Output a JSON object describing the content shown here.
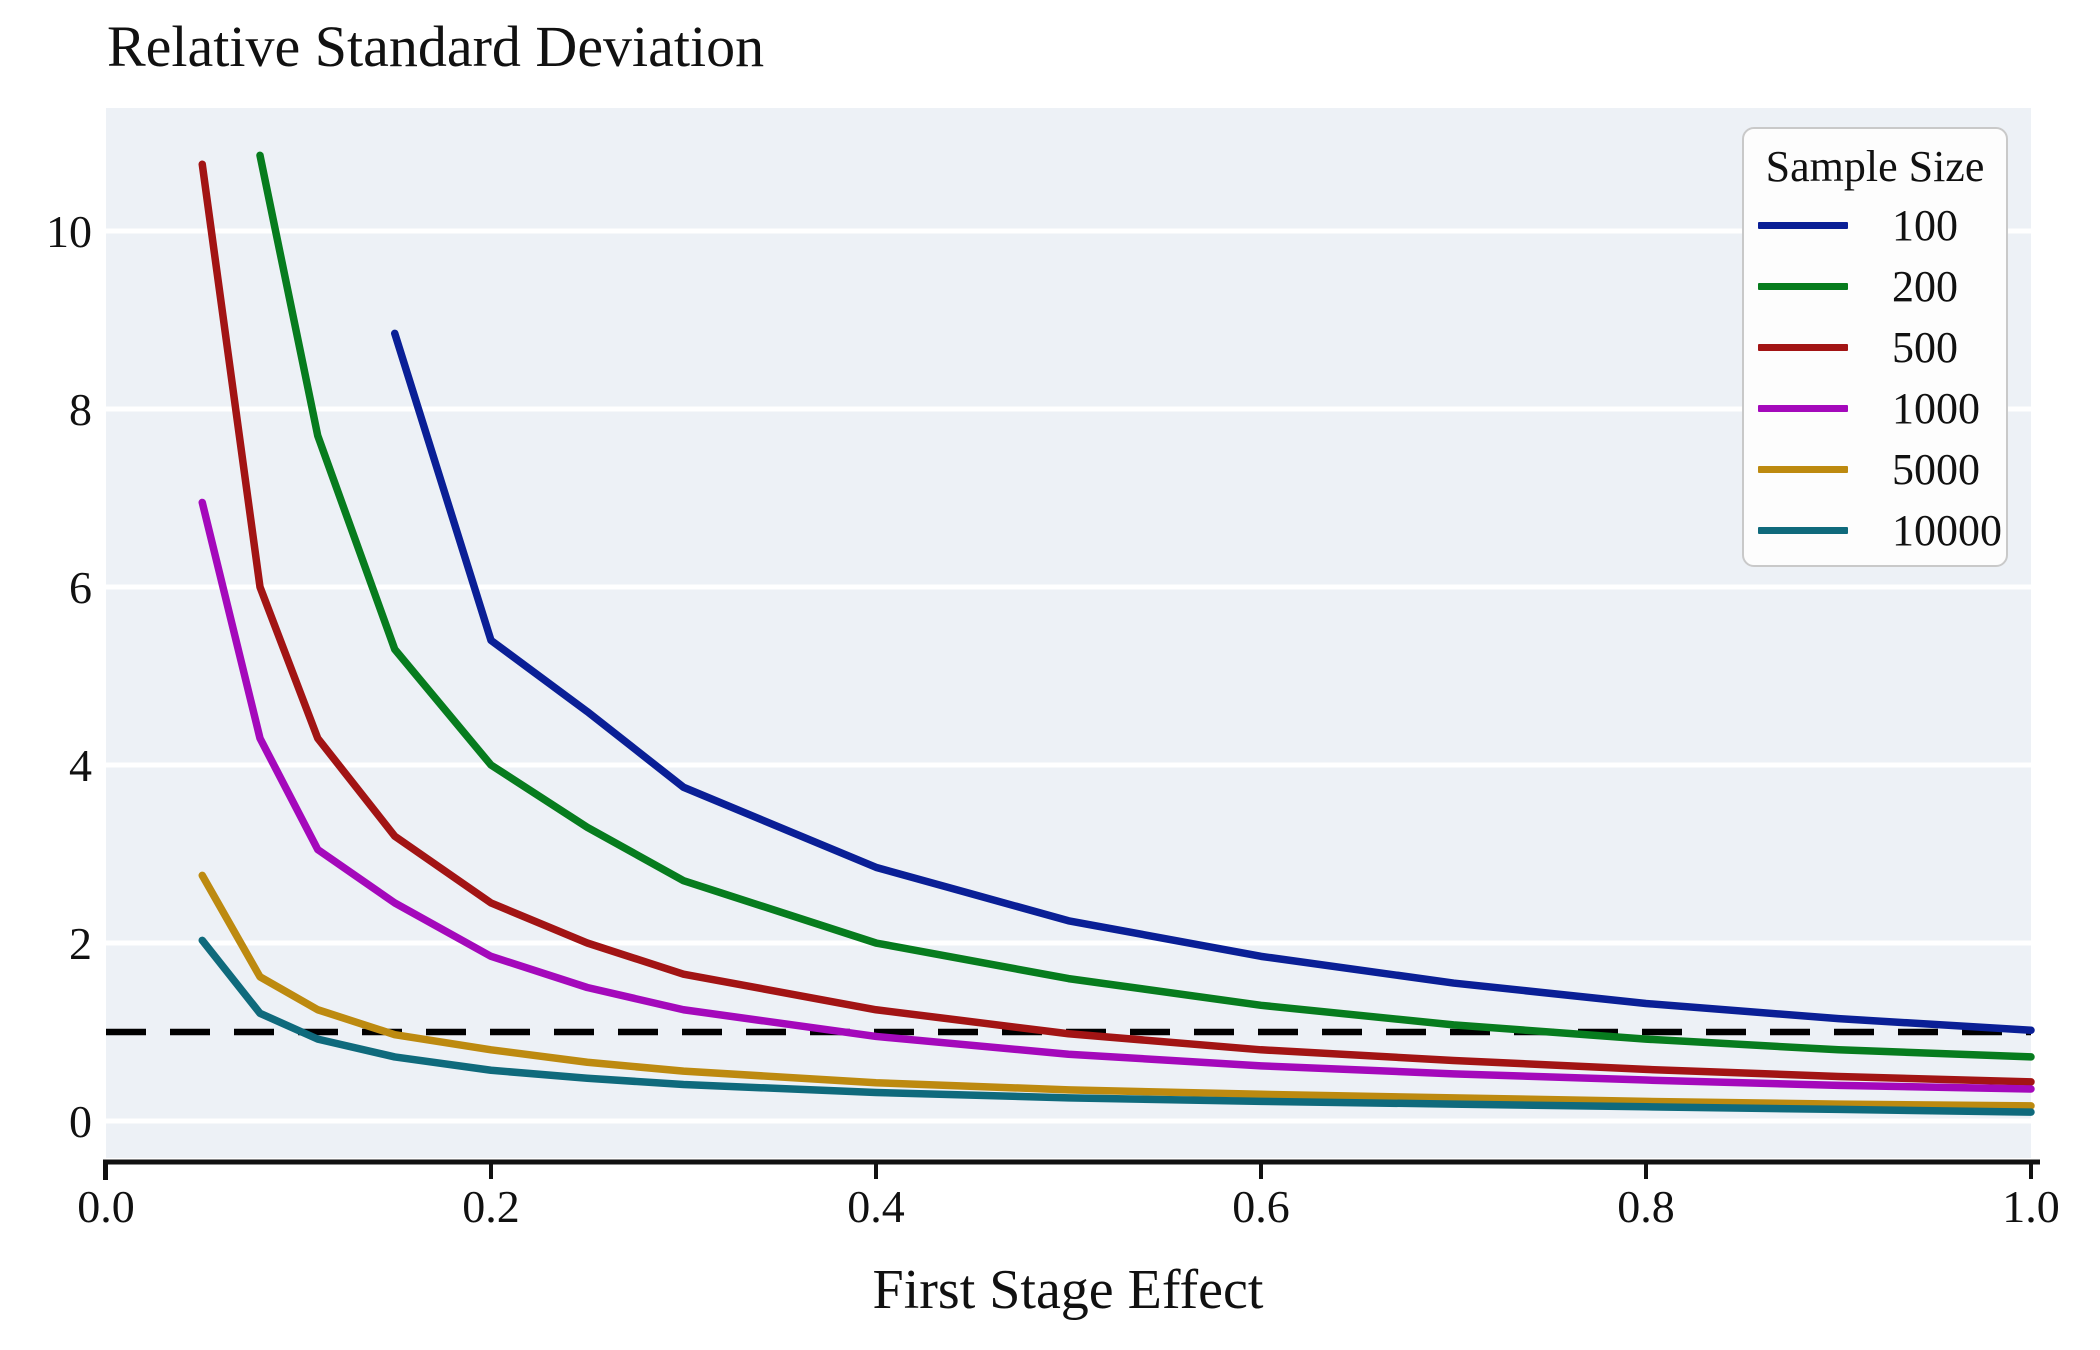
{
  "title": "Relative Standard Deviation",
  "xlabel": "First Stage Effect",
  "legend": {
    "title": "Sample Size",
    "entries": [
      {
        "label": "100",
        "color": "#0a1f96"
      },
      {
        "label": "200",
        "color": "#077c1e"
      },
      {
        "label": "500",
        "color": "#a21414"
      },
      {
        "label": "1000",
        "color": "#a409bb"
      },
      {
        "label": "5000",
        "color": "#bd8a10"
      },
      {
        "label": "10000",
        "color": "#0f6a7c"
      }
    ]
  },
  "axes": {
    "x_tick_labels": [
      "0.0",
      "0.2",
      "0.4",
      "0.6",
      "0.8",
      "1.0"
    ],
    "x_tick_values": [
      0.0,
      0.2,
      0.4,
      0.6,
      0.8,
      1.0
    ],
    "y_tick_labels": [
      "0",
      "2",
      "4",
      "6",
      "8",
      "10"
    ],
    "y_tick_values": [
      0,
      2,
      4,
      6,
      8,
      10
    ]
  },
  "colors": {
    "plot_background": "#edf1f6",
    "gridline": "#ffffff",
    "axis": "#111111",
    "reference_line": "#000000",
    "legend_background": "#fdfdfd",
    "legend_border": "#c9c9c9",
    "text": "#111111"
  },
  "chart_data": {
    "type": "line",
    "title": "Relative Standard Deviation",
    "xlabel": "First Stage Effect",
    "ylabel": "",
    "legend_title": "Sample Size",
    "legend_position": "upper-right",
    "grid": "horizontal-only",
    "xlim": [
      0.0,
      1.0
    ],
    "ylim": [
      -0.45,
      11.4
    ],
    "x_ticks": [
      0.0,
      0.2,
      0.4,
      0.6,
      0.8,
      1.0
    ],
    "y_ticks": [
      0,
      2,
      4,
      6,
      8,
      10
    ],
    "reference_line": {
      "y": 1.0,
      "style": "dashed",
      "color": "#000000"
    },
    "series": [
      {
        "name": "100",
        "color": "#0a1f96",
        "x": [
          0.15,
          0.2,
          0.25,
          0.3,
          0.4,
          0.5,
          0.6,
          0.7,
          0.8,
          0.9,
          1.0
        ],
        "values": [
          8.85,
          5.4,
          4.6,
          3.75,
          2.85,
          2.25,
          1.85,
          1.55,
          1.32,
          1.15,
          1.02
        ]
      },
      {
        "name": "200",
        "color": "#077c1e",
        "x": [
          0.08,
          0.11,
          0.15,
          0.2,
          0.25,
          0.3,
          0.4,
          0.5,
          0.6,
          0.7,
          0.8,
          0.9,
          1.0
        ],
        "values": [
          10.85,
          7.7,
          5.3,
          4.0,
          3.3,
          2.7,
          2.0,
          1.6,
          1.3,
          1.08,
          0.92,
          0.8,
          0.72
        ]
      },
      {
        "name": "500",
        "color": "#a21414",
        "x": [
          0.05,
          0.08,
          0.11,
          0.15,
          0.2,
          0.25,
          0.3,
          0.4,
          0.5,
          0.6,
          0.7,
          0.8,
          0.9,
          1.0
        ],
        "values": [
          10.75,
          6.0,
          4.3,
          3.2,
          2.45,
          2.0,
          1.65,
          1.25,
          0.98,
          0.8,
          0.68,
          0.58,
          0.5,
          0.44
        ]
      },
      {
        "name": "1000",
        "color": "#a409bb",
        "x": [
          0.05,
          0.08,
          0.11,
          0.15,
          0.2,
          0.25,
          0.3,
          0.4,
          0.5,
          0.6,
          0.7,
          0.8,
          0.9,
          1.0
        ],
        "values": [
          6.95,
          4.3,
          3.05,
          2.45,
          1.85,
          1.5,
          1.25,
          0.95,
          0.75,
          0.62,
          0.53,
          0.46,
          0.4,
          0.36
        ]
      },
      {
        "name": "5000",
        "color": "#bd8a10",
        "x": [
          0.05,
          0.08,
          0.11,
          0.15,
          0.2,
          0.25,
          0.3,
          0.4,
          0.5,
          0.6,
          0.7,
          0.8,
          0.9,
          1.0
        ],
        "values": [
          2.76,
          1.62,
          1.25,
          0.97,
          0.8,
          0.66,
          0.56,
          0.43,
          0.35,
          0.3,
          0.26,
          0.22,
          0.19,
          0.17
        ]
      },
      {
        "name": "10000",
        "color": "#0f6a7c",
        "x": [
          0.05,
          0.08,
          0.11,
          0.15,
          0.2,
          0.25,
          0.3,
          0.4,
          0.5,
          0.6,
          0.7,
          0.8,
          0.9,
          1.0
        ],
        "values": [
          2.03,
          1.21,
          0.92,
          0.72,
          0.57,
          0.48,
          0.41,
          0.32,
          0.26,
          0.22,
          0.19,
          0.16,
          0.13,
          0.1
        ]
      }
    ]
  }
}
